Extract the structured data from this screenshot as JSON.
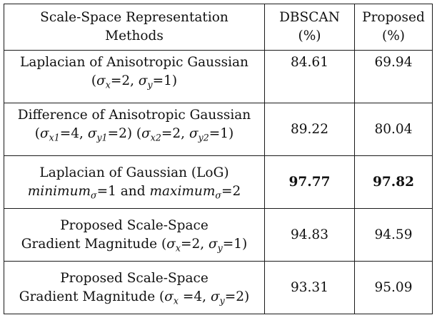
{
  "table": {
    "headers": [
      [
        "Scale-Space Representation",
        "Methods"
      ],
      [
        "DBSCAN",
        "(%)"
      ],
      [
        "Proposed",
        "(%)"
      ]
    ],
    "rows": [
      {
        "method_line1": "Laplacian of Anisotropic Gaussian",
        "method_line2_parts": [
          "(",
          "σ",
          "x",
          "=2, ",
          "σ",
          "y",
          "=1)"
        ],
        "dbscan": "84.61",
        "proposed": "69.94"
      },
      {
        "method_line1": "Difference of Anisotropic Gaussian",
        "method_line2_parts": [
          "(",
          "σ",
          "x1",
          "=4, ",
          "σ",
          "y1",
          "=2) (",
          "σ",
          "x2",
          "=2, ",
          "σ",
          "y2",
          "=1)"
        ],
        "dbscan": "89.22",
        "proposed": "80.04"
      },
      {
        "method_line1": "Laplacian of Gaussian (LoG)",
        "method_line2_parts": [
          "minimum",
          "σ",
          "=1 and ",
          "maximum",
          "σ",
          "=2"
        ],
        "dbscan": "97.77",
        "proposed": "97.82"
      },
      {
        "method_line1": "Proposed Scale-Space",
        "method_line2_parts": [
          "Gradient Magnitude (",
          "σ",
          "x",
          "=2, ",
          "σ",
          "y",
          "=1)"
        ],
        "dbscan": "94.83",
        "proposed": "94.59"
      },
      {
        "method_line1": "Proposed Scale-Space",
        "method_line2_parts": [
          "Gradient Magnitude (",
          "σ",
          "x",
          " =4, ",
          "σ",
          "y",
          "=2)"
        ],
        "dbscan": "93.31",
        "proposed": "95.09"
      }
    ]
  }
}
